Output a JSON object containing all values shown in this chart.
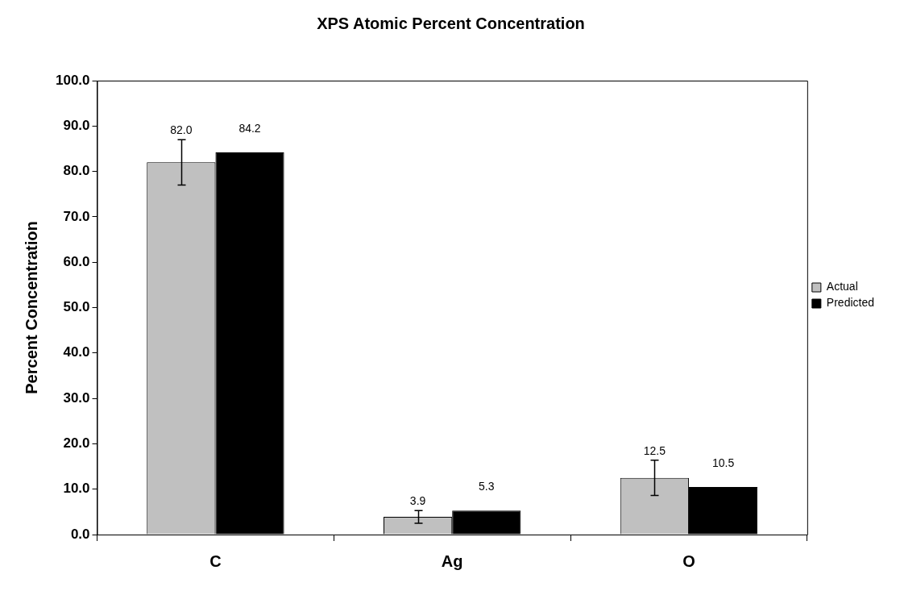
{
  "chart_data": {
    "type": "bar",
    "title": "XPS Atomic Percent Concentration",
    "ylabel": "Percent Concentration",
    "categories": [
      "C",
      "Ag",
      "O"
    ],
    "series": [
      {
        "name": "Actual",
        "color": "#c0c0c0",
        "values": [
          82.0,
          3.9,
          12.5
        ],
        "errors": [
          5.0,
          1.4,
          3.9
        ],
        "value_labels": [
          "82.0",
          "3.9",
          "12.5"
        ]
      },
      {
        "name": "Predicted",
        "color": "#000000",
        "values": [
          84.2,
          5.3,
          10.5
        ],
        "value_labels": [
          "84.2",
          "5.3",
          "10.5"
        ]
      }
    ],
    "ylim": [
      0,
      100
    ],
    "yticks": [
      {
        "value": 0,
        "label": "0.0"
      },
      {
        "value": 10,
        "label": "10.0"
      },
      {
        "value": 20,
        "label": "20.0"
      },
      {
        "value": 30,
        "label": "30.0"
      },
      {
        "value": 40,
        "label": "40.0"
      },
      {
        "value": 50,
        "label": "50.0"
      },
      {
        "value": 60,
        "label": "60.0"
      },
      {
        "value": 70,
        "label": "70.0"
      },
      {
        "value": 80,
        "label": "80.0"
      },
      {
        "value": 90,
        "label": "90.0"
      },
      {
        "value": 100,
        "label": "100.0"
      }
    ],
    "grid": false,
    "legend": "right"
  }
}
